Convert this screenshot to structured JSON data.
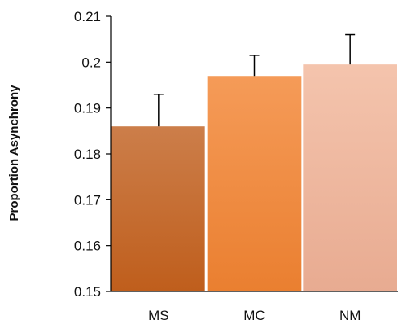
{
  "chart_data": {
    "type": "bar",
    "title": "",
    "xlabel": "",
    "ylabel": "Proportion Asynchrony",
    "categories": [
      "MS",
      "MC",
      "NM"
    ],
    "values": [
      0.186,
      0.197,
      0.1995
    ],
    "error_upper": [
      0.193,
      0.2015,
      0.206
    ],
    "ylim": [
      0.15,
      0.21
    ],
    "yticks": [
      "0.15",
      "0.16",
      "0.17",
      "0.18",
      "0.19",
      "0.2",
      "0.21"
    ],
    "grid": false,
    "legend": "none",
    "colors": {
      "MS": [
        "#cc7e4a",
        "#bf5e1c"
      ],
      "MC": [
        "#f59b58",
        "#ea7f30"
      ],
      "NM": [
        "#f4c4ad",
        "#e8ab91"
      ],
      "axis": "#000000",
      "error_bar": "#000000"
    }
  }
}
